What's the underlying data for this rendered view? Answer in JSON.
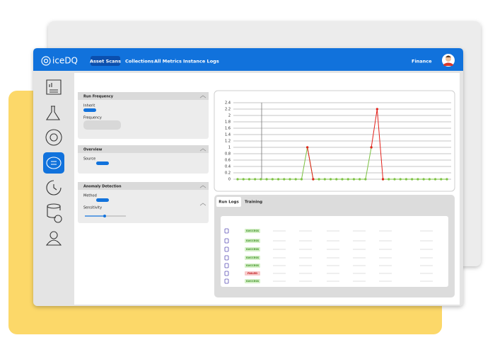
{
  "header": {
    "brand": "iceDQ",
    "nav": [
      "Asset Scans",
      "Collections",
      "All Metrics",
      "Instance Logs"
    ],
    "user": "Finance"
  },
  "panels": [
    {
      "title": "Run Frequency",
      "fields": [
        "Inherit",
        "Frequency"
      ]
    },
    {
      "title": "Overview",
      "fields": [
        "Source"
      ]
    },
    {
      "title": "Anomaly Detection",
      "fields": [
        "Method",
        "Sensitivity"
      ]
    }
  ],
  "chart_data": {
    "type": "line",
    "ylim": [
      0,
      2.4
    ],
    "yticks": [
      0,
      0.2,
      0.4,
      0.6,
      0.8,
      1,
      1.2,
      1.4,
      1.6,
      1.8,
      2,
      2.2,
      2.4
    ],
    "grid": true,
    "series": [
      {
        "color": "#7cc242",
        "values": [
          0,
          0,
          0,
          0,
          0,
          0,
          0,
          0,
          0,
          0,
          0,
          0,
          1,
          0,
          0,
          0,
          0,
          0,
          0,
          0,
          0,
          0,
          0,
          1,
          null,
          0,
          0,
          0,
          0,
          0,
          0,
          0,
          0,
          0,
          0,
          0,
          0
        ]
      },
      {
        "color": "#e3211b",
        "values": [
          null,
          null,
          null,
          null,
          null,
          null,
          null,
          null,
          null,
          null,
          null,
          null,
          1,
          0,
          null,
          null,
          null,
          null,
          null,
          null,
          null,
          null,
          null,
          1,
          2.2,
          0,
          null,
          null,
          null,
          null,
          null,
          null,
          null,
          null,
          null,
          null,
          null
        ]
      }
    ]
  },
  "run_logs": {
    "tabs": [
      "Run Logs",
      "Training"
    ],
    "statuses": [
      "SUCCESS",
      "SUCCESS",
      "SUCCESS",
      "SUCCESS",
      "SUCCESS",
      "FAILED",
      "SUCCESS"
    ]
  }
}
